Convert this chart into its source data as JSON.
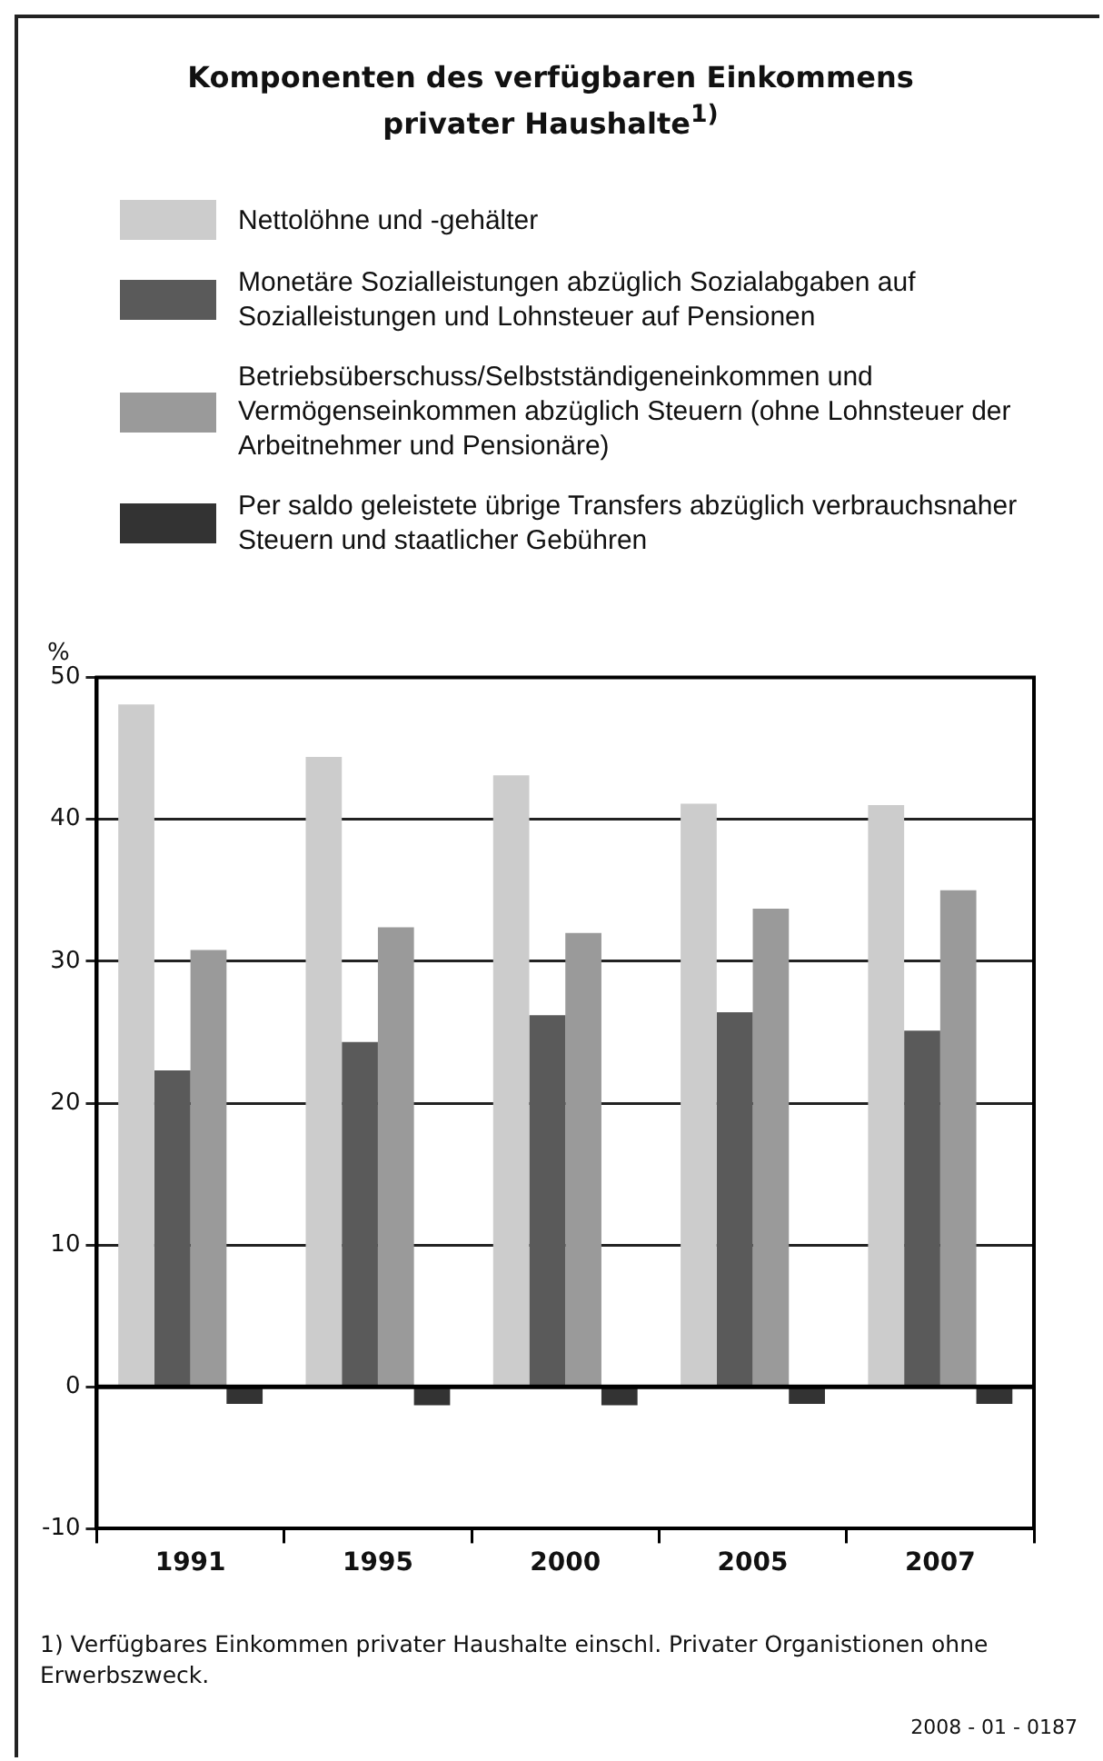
{
  "chart_data": {
    "type": "bar",
    "title": "Komponenten des verfügbaren Einkommens privater Haushalte$^{1)}$",
    "ylabel": "%",
    "categories": [
      "1991",
      "1995",
      "2000",
      "2005",
      "2007"
    ],
    "series": [
      {
        "name": "Nettolöhne und -gehälter",
        "color": "#cccccc",
        "values": [
          48.1,
          44.4,
          43.1,
          41.1,
          41.0
        ]
      },
      {
        "name": "Monetäre Sozialleistungen abzüglich Sozialabgaben auf Sozialleistungen und Lohnsteuer auf Pensionen",
        "color": "#5a5a5a",
        "values": [
          22.3,
          24.3,
          26.2,
          26.4,
          25.1
        ]
      },
      {
        "name": "Betriebsüberschuss/Selbstständigeneinkommen und Vermögenseinkommen abzüglich Steuern (ohne Lohnsteuer der Arbeitnehmer und Pensionäre)",
        "color": "#9a9a9a",
        "values": [
          30.8,
          32.4,
          32.0,
          33.7,
          35.0
        ]
      },
      {
        "name": "Per saldo geleistete übrige Transfers abzüglich verbrauchsnaher Steuern und staatlicher Gebühren",
        "color": "#333333",
        "values": [
          -1.2,
          -1.3,
          -1.3,
          -1.2,
          -1.2
        ]
      }
    ],
    "ylim": [
      -10,
      50
    ],
    "yticks": [
      -10,
      0,
      10,
      20,
      30,
      40,
      50
    ],
    "grid": "y",
    "legend": "top",
    "annotations": [
      "1) Verfügbares Einkommen privater Haushalte einschl. Privater Organistionen ohne Erwerbszweck.",
      "2008 - 01 - 0187"
    ]
  }
}
